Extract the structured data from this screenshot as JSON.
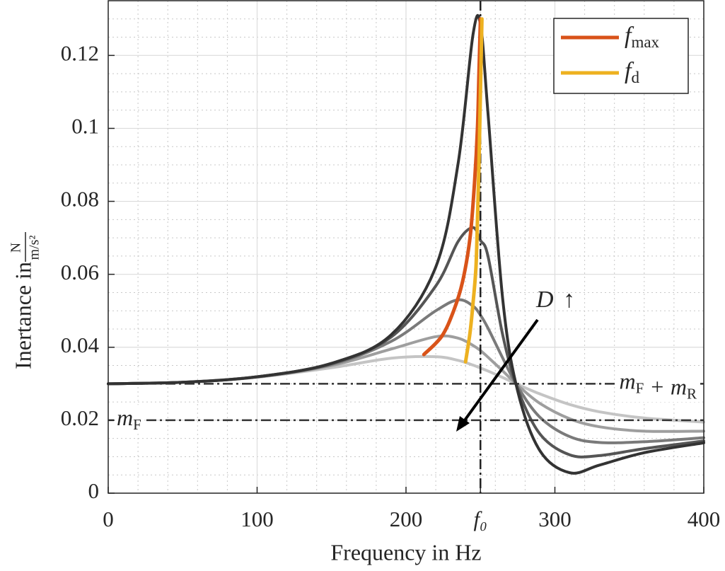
{
  "chart_data": {
    "type": "line",
    "xlabel": "Frequency in Hz",
    "ylabel": {
      "text": "Inertance in",
      "numerator": "N",
      "denominator": "m/s²"
    },
    "x": [
      0,
      50,
      100,
      150,
      190,
      220,
      235,
      245,
      250,
      255,
      265,
      275,
      290,
      310,
      330,
      360,
      400
    ],
    "series": [
      {
        "color": "#c4c4c4",
        "values": [
          0.03,
          0.0304,
          0.0318,
          0.0344,
          0.037,
          0.0374,
          0.0364,
          0.0351,
          0.0343,
          0.0335,
          0.0317,
          0.0298,
          0.0272,
          0.0243,
          0.0223,
          0.0206,
          0.0195
        ]
      },
      {
        "color": "#9e9e9e",
        "values": [
          0.03,
          0.0304,
          0.0318,
          0.035,
          0.0395,
          0.0429,
          0.0425,
          0.0405,
          0.0391,
          0.0373,
          0.0335,
          0.0296,
          0.0246,
          0.0204,
          0.0182,
          0.017,
          0.017
        ]
      },
      {
        "color": "#7a7a7a",
        "values": [
          0.03,
          0.0304,
          0.0319,
          0.0353,
          0.0416,
          0.05,
          0.053,
          0.0513,
          0.0488,
          0.0453,
          0.037,
          0.0292,
          0.0208,
          0.0155,
          0.0139,
          0.0141,
          0.0152
        ]
      },
      {
        "color": "#555555",
        "values": [
          0.03,
          0.0304,
          0.0319,
          0.0355,
          0.0428,
          0.0568,
          0.069,
          0.0728,
          0.0693,
          0.0651,
          0.0433,
          0.0286,
          0.0162,
          0.0105,
          0.0103,
          0.0122,
          0.0143
        ]
      },
      {
        "color": "#333333",
        "values": [
          0.03,
          0.0304,
          0.0319,
          0.0356,
          0.0434,
          0.062,
          0.0904,
          0.1257,
          0.1286,
          0.1045,
          0.053,
          0.028,
          0.0116,
          0.0056,
          0.0077,
          0.0111,
          0.0138
        ]
      },
      {
        "name": [
          "f",
          "max"
        ],
        "color": "#d95319",
        "x": [
          250,
          249,
          248,
          246,
          243,
          238,
          232,
          224,
          212
        ],
        "values": [
          0.13,
          0.115,
          0.1,
          0.085,
          0.07,
          0.058,
          0.05,
          0.043,
          0.038
        ]
      },
      {
        "name": [
          "f",
          "d"
        ],
        "color": "#edb120",
        "x": [
          251,
          250,
          249,
          248,
          247,
          245,
          243,
          240
        ],
        "values": [
          0.13,
          0.11,
          0.09,
          0.075,
          0.062,
          0.052,
          0.044,
          0.036
        ]
      }
    ],
    "xlim": [
      0,
      400
    ],
    "ylim": [
      0,
      0.135
    ],
    "xticks": [
      0,
      100,
      200,
      {
        "value": 250,
        "label": "f₀"
      },
      300,
      400
    ],
    "yticks": [
      0,
      0.02,
      0.04,
      0.06,
      0.08,
      0.1,
      0.12
    ],
    "xminorticks": [
      20,
      40,
      60,
      80,
      120,
      140,
      160,
      180,
      220,
      240,
      260,
      280,
      320,
      340,
      360,
      380
    ],
    "yminorticks": [
      0.005,
      0.01,
      0.015,
      0.025,
      0.03,
      0.035,
      0.045,
      0.05,
      0.055,
      0.065,
      0.07,
      0.075,
      0.085,
      0.09,
      0.095,
      0.105,
      0.11,
      0.115,
      0.125,
      0.13
    ],
    "grid": true,
    "minor_grid": true,
    "legend": "upper right",
    "hlines": [
      {
        "value": 0.03,
        "label": [
          {
            "base": "m",
            "sub": "F"
          },
          {
            "base": " + "
          },
          {
            "base": "m",
            "sub": "R"
          }
        ],
        "side": "right"
      },
      {
        "value": 0.02,
        "label": [
          {
            "base": "m",
            "sub": "F"
          }
        ],
        "side": "left"
      }
    ],
    "vlines": [
      250
    ],
    "annotation": {
      "symbol": "D",
      "arrow": "↑"
    }
  }
}
